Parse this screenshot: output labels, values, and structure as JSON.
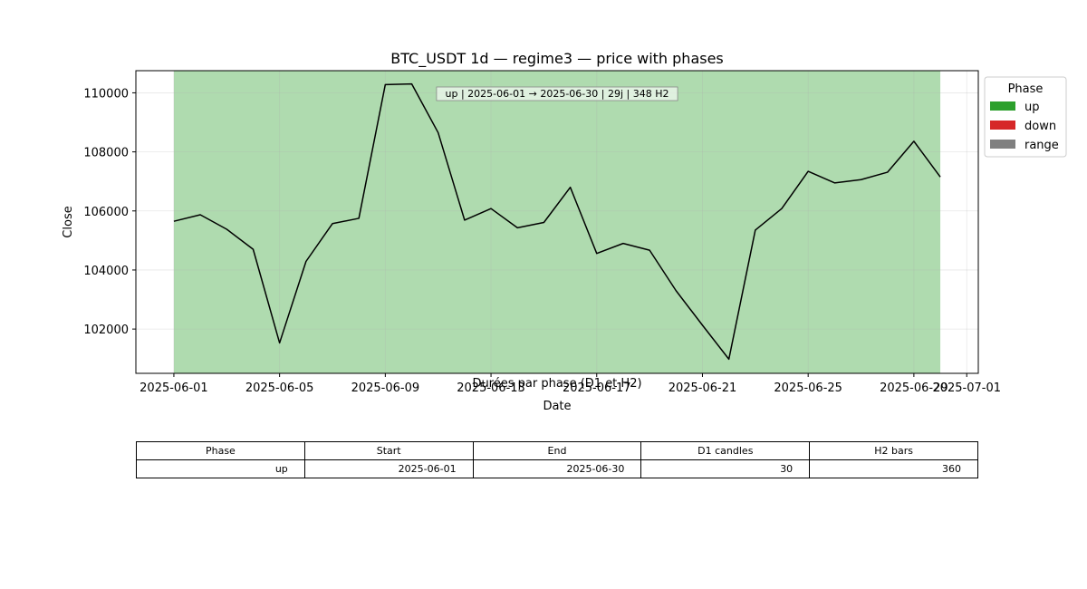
{
  "chart_data": {
    "type": "line",
    "title": "BTC_USDT 1d — regime3 — price with phases",
    "xlabel": "Date",
    "ylabel": "Close",
    "xlim": [
      "2025-05-30 13:30",
      "2025-07-01 10:30"
    ],
    "ylim": [
      100500,
      110750
    ],
    "x_ticks": [
      "2025-06-01",
      "2025-06-05",
      "2025-06-09",
      "2025-06-13",
      "2025-06-17",
      "2025-06-21",
      "2025-06-25",
      "2025-06-29",
      "2025-07-01"
    ],
    "y_ticks": [
      102000,
      104000,
      106000,
      108000,
      110000
    ],
    "grid": true,
    "series": [
      {
        "name": "",
        "color": "#000000",
        "x": [
          "2025-06-01",
          "2025-06-02",
          "2025-06-03",
          "2025-06-04",
          "2025-06-05",
          "2025-06-06",
          "2025-06-07",
          "2025-06-08",
          "2025-06-09",
          "2025-06-10",
          "2025-06-11",
          "2025-06-12",
          "2025-06-13",
          "2025-06-14",
          "2025-06-15",
          "2025-06-16",
          "2025-06-17",
          "2025-06-18",
          "2025-06-19",
          "2025-06-20",
          "2025-06-21",
          "2025-06-22",
          "2025-06-23",
          "2025-06-24",
          "2025-06-25",
          "2025-06-26",
          "2025-06-27",
          "2025-06-28",
          "2025-06-29",
          "2025-06-30"
        ],
        "values": [
          105650,
          105870,
          105380,
          104700,
          101530,
          104290,
          105570,
          105750,
          110280,
          110300,
          108650,
          105690,
          106080,
          105430,
          105610,
          106800,
          104560,
          104900,
          104670,
          103300,
          102130,
          100980,
          105350,
          106080,
          107340,
          106950,
          107060,
          107310,
          108360,
          107150
        ]
      }
    ],
    "phases": [
      {
        "phase": "up",
        "start": "2025-06-01",
        "end": "2025-06-30",
        "color": "#2ca02c",
        "label": "up | 2025-06-01 → 2025-06-30 | 29j | 348 H2"
      }
    ],
    "legend": {
      "title": "Phase",
      "placement": "outside-right",
      "entries": [
        {
          "label": "up",
          "color": "#2ca02c"
        },
        {
          "label": "down",
          "color": "#d62728"
        },
        {
          "label": "range",
          "color": "#808080"
        }
      ]
    }
  },
  "table": {
    "title": "Durées par phase (D1 et H2)",
    "headers": [
      "Phase",
      "Start",
      "End",
      "D1 candles",
      "H2 bars"
    ],
    "rows": [
      [
        "up",
        "2025-06-01",
        "2025-06-30",
        "30",
        "360"
      ]
    ]
  }
}
